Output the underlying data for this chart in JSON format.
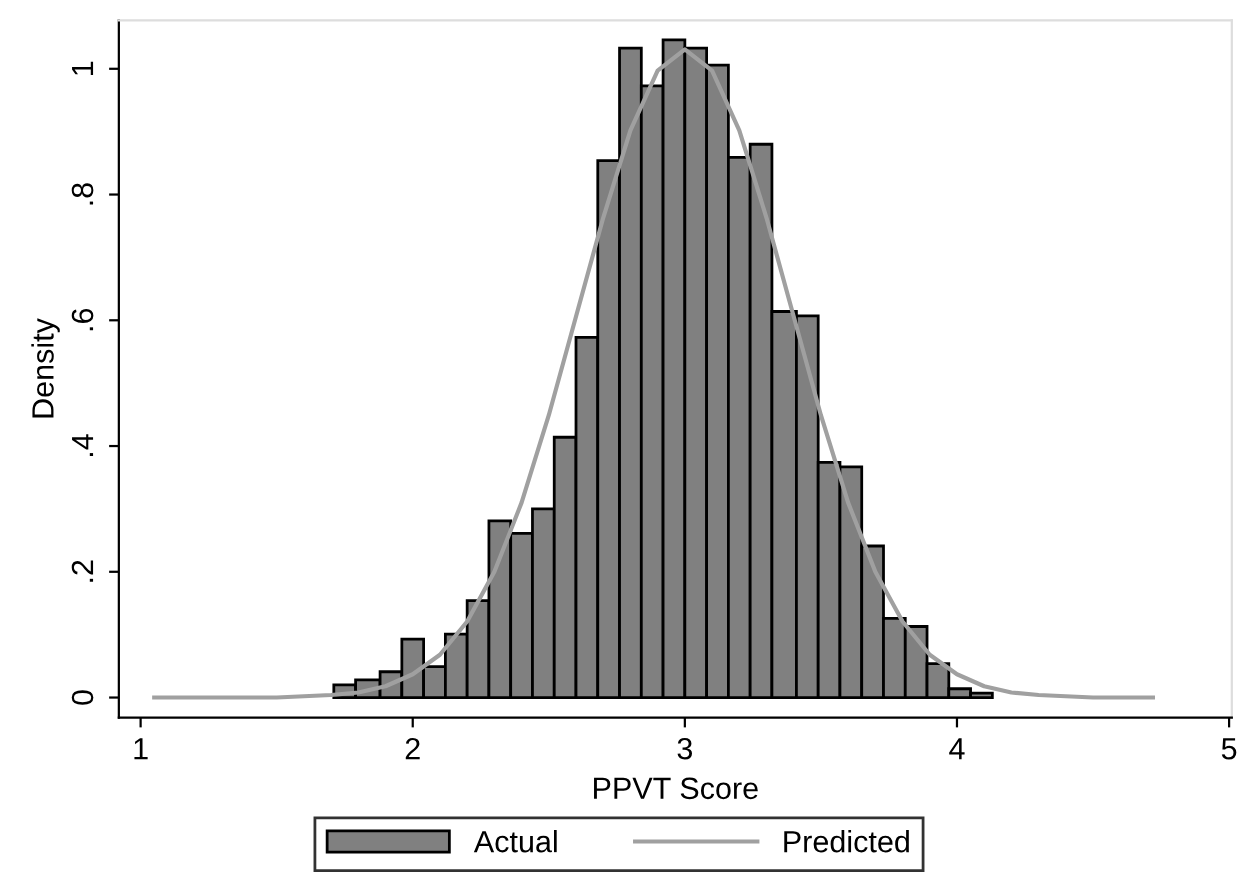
{
  "chart_data": {
    "type": "histogram",
    "xlabel": "PPVT Score",
    "ylabel": "Density",
    "bins": [
      1.71,
      1.79,
      1.88,
      1.96,
      2.04,
      2.12,
      2.2,
      2.28,
      2.36,
      2.44,
      2.52,
      2.6,
      2.68,
      2.76,
      2.84,
      2.92,
      3.0,
      3.08,
      3.16,
      3.24,
      3.32,
      3.41,
      3.49,
      3.57,
      3.65,
      3.73,
      3.81,
      3.89,
      3.97,
      4.05,
      4.13
    ],
    "series": [
      {
        "name": "Actual",
        "type": "histogram",
        "color": "#808080",
        "values": [
          0.02,
          0.028,
          0.041,
          0.093,
          0.049,
          0.101,
          0.154,
          0.281,
          0.261,
          0.3,
          0.414,
          0.573,
          0.854,
          1.033,
          0.973,
          1.046,
          1.033,
          1.006,
          0.859,
          0.88,
          0.614,
          0.607,
          0.374,
          0.367,
          0.241,
          0.126,
          0.113,
          0.054,
          0.014,
          0.007
        ]
      },
      {
        "name": "Predicted",
        "type": "line",
        "color": "#a0a0a0",
        "x": [
          1.05,
          1.5,
          1.7,
          1.8,
          1.9,
          2.0,
          2.1,
          2.2,
          2.3,
          2.4,
          2.5,
          2.6,
          2.7,
          2.8,
          2.9,
          3.0,
          3.1,
          3.2,
          3.3,
          3.4,
          3.5,
          3.6,
          3.7,
          3.8,
          3.9,
          4.0,
          4.1,
          4.2,
          4.3,
          4.5,
          4.72
        ],
        "values": [
          0.0,
          0.0,
          0.004,
          0.008,
          0.018,
          0.037,
          0.068,
          0.121,
          0.2,
          0.31,
          0.449,
          0.606,
          0.763,
          0.902,
          0.997,
          1.031,
          0.997,
          0.902,
          0.763,
          0.606,
          0.449,
          0.31,
          0.2,
          0.121,
          0.068,
          0.037,
          0.018,
          0.008,
          0.004,
          0.0,
          0.0
        ]
      }
    ],
    "xlim": [
      0.92,
      5.01
    ],
    "ylim": [
      -0.032,
      1.077
    ],
    "xticks": [
      1,
      2,
      3,
      4,
      5
    ],
    "yticks": [
      {
        "value": 0,
        "label": "0"
      },
      {
        "value": 0.2,
        "label": ".2"
      },
      {
        "value": 0.4,
        "label": ".4"
      },
      {
        "value": 0.6,
        "label": ".6"
      },
      {
        "value": 0.8,
        "label": ".8"
      },
      {
        "value": 1,
        "label": "1"
      }
    ],
    "legend": "bottom",
    "grid": false
  }
}
